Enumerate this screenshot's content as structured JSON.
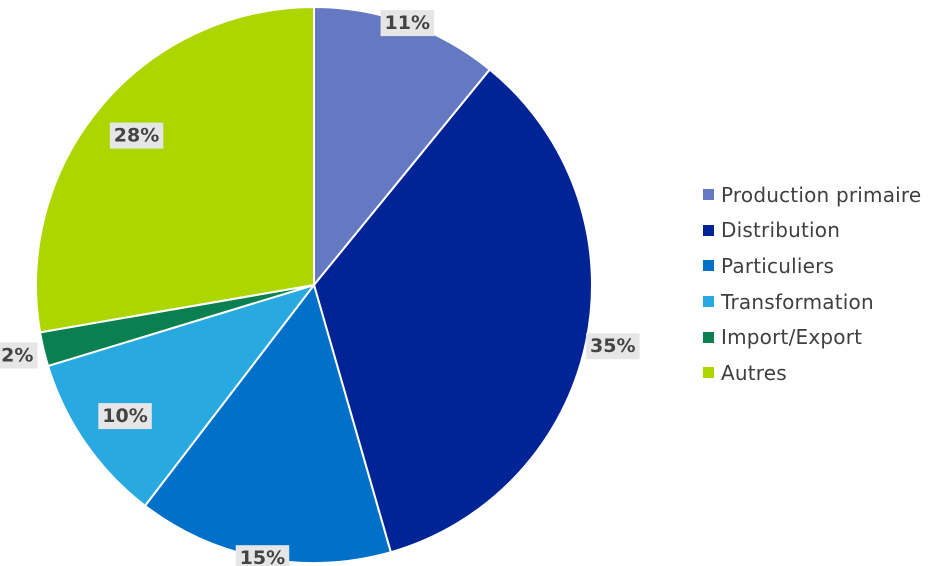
{
  "chart_data": {
    "type": "pie",
    "categories": [
      "Production primaire",
      "Distribution",
      "Particuliers",
      "Transformation",
      "Import/Export",
      "Autres"
    ],
    "values": [
      11,
      35,
      15,
      10,
      2,
      28
    ],
    "data_labels": [
      "11%",
      "35%",
      "15%",
      "10%",
      "2%",
      "28%"
    ],
    "colors": [
      "#6579c2",
      "#002395",
      "#0070c8",
      "#28a9e0",
      "#0a8050",
      "#add600"
    ],
    "start_angle_deg": 0,
    "direction": "clockwise",
    "legend_position": "right"
  }
}
